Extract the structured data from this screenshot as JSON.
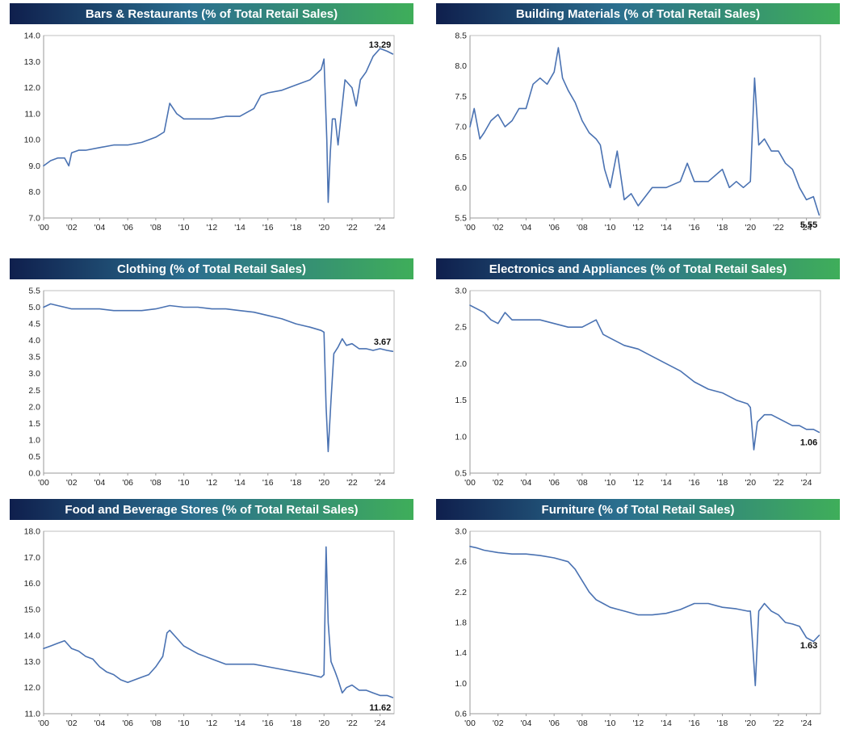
{
  "colors": {
    "series_line": "#4a72b2",
    "title_bg_start": "#0f1f4d",
    "title_bg_end": "#3fae5a",
    "title_text": "#ffffff"
  },
  "chart_data": [
    {
      "type": "line",
      "title": "Bars & Restaurants (% of Total Retail Sales)",
      "ylim": [
        7.0,
        14.0
      ],
      "yticks": [
        "7.0",
        "8.0",
        "9.0",
        "10.0",
        "11.0",
        "12.0",
        "13.0",
        "14.0"
      ],
      "xlim": [
        2000,
        2025
      ],
      "xticks": [
        "'00",
        "'02",
        "'04",
        "'06",
        "'08",
        "'10",
        "'12",
        "'14",
        "'16",
        "'18",
        "'20",
        "'22",
        "'24"
      ],
      "last_label": "13.29",
      "x": [
        2000.0,
        2000.5,
        2001.0,
        2001.5,
        2001.8,
        2002.0,
        2002.5,
        2003.0,
        2004.0,
        2005.0,
        2006.0,
        2007.0,
        2008.0,
        2008.6,
        2009.0,
        2009.5,
        2010.0,
        2011.0,
        2012.0,
        2013.0,
        2014.0,
        2015.0,
        2015.5,
        2016.0,
        2017.0,
        2018.0,
        2019.0,
        2019.8,
        2020.0,
        2020.2,
        2020.3,
        2020.45,
        2020.6,
        2020.8,
        2021.0,
        2021.2,
        2021.5,
        2022.0,
        2022.3,
        2022.6,
        2023.0,
        2023.5,
        2024.0,
        2024.5,
        2024.9
      ],
      "y": [
        9.0,
        9.2,
        9.3,
        9.3,
        9.0,
        9.5,
        9.6,
        9.6,
        9.7,
        9.8,
        9.8,
        9.9,
        10.1,
        10.3,
        11.4,
        11.0,
        10.8,
        10.8,
        10.8,
        10.9,
        10.9,
        11.2,
        11.7,
        11.8,
        11.9,
        12.1,
        12.3,
        12.7,
        13.1,
        10.0,
        7.6,
        9.5,
        10.8,
        10.8,
        9.8,
        10.8,
        12.3,
        12.0,
        11.3,
        12.3,
        12.6,
        13.2,
        13.5,
        13.4,
        13.29
      ]
    },
    {
      "type": "line",
      "title": "Building Materials (% of Total Retail Sales)",
      "ylim": [
        5.5,
        8.5
      ],
      "yticks": [
        "5.5",
        "6.0",
        "6.5",
        "7.0",
        "7.5",
        "8.0",
        "8.5"
      ],
      "xlim": [
        2000,
        2025
      ],
      "xticks": [
        "'00",
        "'02",
        "'04",
        "'06",
        "'08",
        "'10",
        "'12",
        "'14",
        "'16",
        "'18",
        "'20",
        "'22",
        "'24"
      ],
      "last_label": "5.55",
      "x": [
        2000.0,
        2000.3,
        2000.7,
        2001.0,
        2001.5,
        2002.0,
        2002.5,
        2003.0,
        2003.5,
        2004.0,
        2004.5,
        2005.0,
        2005.5,
        2006.0,
        2006.3,
        2006.6,
        2007.0,
        2007.5,
        2008.0,
        2008.5,
        2009.0,
        2009.3,
        2009.6,
        2010.0,
        2010.5,
        2011.0,
        2011.5,
        2012.0,
        2012.5,
        2013.0,
        2014.0,
        2015.0,
        2015.5,
        2016.0,
        2017.0,
        2018.0,
        2018.5,
        2019.0,
        2019.5,
        2020.0,
        2020.3,
        2020.6,
        2021.0,
        2021.5,
        2022.0,
        2022.5,
        2023.0,
        2023.5,
        2024.0,
        2024.5,
        2024.9
      ],
      "y": [
        7.0,
        7.3,
        6.8,
        6.9,
        7.1,
        7.2,
        7.0,
        7.1,
        7.3,
        7.3,
        7.7,
        7.8,
        7.7,
        7.9,
        8.3,
        7.8,
        7.6,
        7.4,
        7.1,
        6.9,
        6.8,
        6.7,
        6.3,
        6.0,
        6.6,
        5.8,
        5.9,
        5.7,
        5.85,
        6.0,
        6.0,
        6.1,
        6.4,
        6.1,
        6.1,
        6.3,
        6.0,
        6.1,
        6.0,
        6.1,
        7.8,
        6.7,
        6.8,
        6.6,
        6.6,
        6.4,
        6.3,
        6.0,
        5.8,
        5.85,
        5.55
      ]
    },
    {
      "type": "line",
      "title": "Clothing (% of Total Retail Sales)",
      "ylim": [
        0.0,
        5.5
      ],
      "yticks": [
        "0.0",
        "0.5",
        "1.0",
        "1.5",
        "2.0",
        "2.5",
        "3.0",
        "3.5",
        "4.0",
        "4.5",
        "5.0",
        "5.5"
      ],
      "xlim": [
        2000,
        2025
      ],
      "xticks": [
        "'00",
        "'02",
        "'04",
        "'06",
        "'08",
        "'10",
        "'12",
        "'14",
        "'16",
        "'18",
        "'20",
        "'22",
        "'24"
      ],
      "last_label": "3.67",
      "x": [
        2000.0,
        2000.5,
        2001.0,
        2001.5,
        2002.0,
        2003.0,
        2004.0,
        2005.0,
        2006.0,
        2007.0,
        2008.0,
        2009.0,
        2010.0,
        2011.0,
        2012.0,
        2013.0,
        2014.0,
        2015.0,
        2016.0,
        2017.0,
        2018.0,
        2019.0,
        2019.8,
        2020.0,
        2020.15,
        2020.3,
        2020.5,
        2020.7,
        2021.0,
        2021.3,
        2021.6,
        2022.0,
        2022.5,
        2023.0,
        2023.5,
        2024.0,
        2024.5,
        2024.9
      ],
      "y": [
        5.0,
        5.1,
        5.05,
        5.0,
        4.95,
        4.95,
        4.95,
        4.9,
        4.9,
        4.9,
        4.95,
        5.05,
        5.0,
        5.0,
        4.95,
        4.95,
        4.9,
        4.85,
        4.75,
        4.65,
        4.5,
        4.4,
        4.3,
        4.25,
        2.0,
        0.65,
        2.2,
        3.6,
        3.8,
        4.05,
        3.85,
        3.9,
        3.75,
        3.75,
        3.7,
        3.75,
        3.7,
        3.67
      ]
    },
    {
      "type": "line",
      "title": "Electronics and Appliances (% of Total Retail Sales)",
      "ylim": [
        0.5,
        3.0
      ],
      "yticks": [
        "0.5",
        "1.0",
        "1.5",
        "2.0",
        "2.5",
        "3.0"
      ],
      "xlim": [
        2000,
        2025
      ],
      "xticks": [
        "'00",
        "'02",
        "'04",
        "'06",
        "'08",
        "'10",
        "'12",
        "'14",
        "'16",
        "'18",
        "'20",
        "'22",
        "'24"
      ],
      "last_label": "1.06",
      "x": [
        2000.0,
        2000.5,
        2001.0,
        2001.5,
        2002.0,
        2002.5,
        2003.0,
        2004.0,
        2005.0,
        2006.0,
        2007.0,
        2008.0,
        2009.0,
        2009.5,
        2010.0,
        2011.0,
        2012.0,
        2013.0,
        2014.0,
        2015.0,
        2016.0,
        2017.0,
        2018.0,
        2019.0,
        2019.8,
        2020.0,
        2020.25,
        2020.5,
        2021.0,
        2021.5,
        2022.0,
        2022.5,
        2023.0,
        2023.5,
        2024.0,
        2024.5,
        2024.9
      ],
      "y": [
        2.8,
        2.75,
        2.7,
        2.6,
        2.55,
        2.7,
        2.6,
        2.6,
        2.6,
        2.55,
        2.5,
        2.5,
        2.6,
        2.4,
        2.35,
        2.25,
        2.2,
        2.1,
        2.0,
        1.9,
        1.75,
        1.65,
        1.6,
        1.5,
        1.45,
        1.4,
        0.82,
        1.2,
        1.3,
        1.3,
        1.25,
        1.2,
        1.15,
        1.15,
        1.1,
        1.1,
        1.06
      ]
    },
    {
      "type": "line",
      "title": "Food and Beverage Stores (% of Total Retail Sales)",
      "ylim": [
        11.0,
        18.0
      ],
      "yticks": [
        "11.0",
        "12.0",
        "13.0",
        "14.0",
        "15.0",
        "16.0",
        "17.0",
        "18.0"
      ],
      "xlim": [
        2000,
        2025
      ],
      "xticks": [
        "'00",
        "'02",
        "'04",
        "'06",
        "'08",
        "'10",
        "'12",
        "'14",
        "'16",
        "'18",
        "'20",
        "'22",
        "'24"
      ],
      "last_label": "11.62",
      "x": [
        2000.0,
        2000.5,
        2001.0,
        2001.5,
        2002.0,
        2002.5,
        2003.0,
        2003.5,
        2004.0,
        2004.5,
        2005.0,
        2005.5,
        2006.0,
        2006.5,
        2007.0,
        2007.5,
        2008.0,
        2008.5,
        2008.8,
        2009.0,
        2009.5,
        2010.0,
        2011.0,
        2012.0,
        2013.0,
        2014.0,
        2015.0,
        2016.0,
        2017.0,
        2018.0,
        2019.0,
        2019.8,
        2020.0,
        2020.15,
        2020.3,
        2020.5,
        2020.8,
        2021.0,
        2021.3,
        2021.6,
        2022.0,
        2022.5,
        2023.0,
        2023.5,
        2024.0,
        2024.5,
        2024.9
      ],
      "y": [
        13.5,
        13.6,
        13.7,
        13.8,
        13.5,
        13.4,
        13.2,
        13.1,
        12.8,
        12.6,
        12.5,
        12.3,
        12.2,
        12.3,
        12.4,
        12.5,
        12.8,
        13.2,
        14.1,
        14.2,
        13.9,
        13.6,
        13.3,
        13.1,
        12.9,
        12.9,
        12.9,
        12.8,
        12.7,
        12.6,
        12.5,
        12.4,
        12.5,
        17.4,
        14.5,
        13.0,
        12.6,
        12.3,
        11.8,
        12.0,
        12.1,
        11.9,
        11.9,
        11.8,
        11.7,
        11.7,
        11.62
      ]
    },
    {
      "type": "line",
      "title": "Furniture (% of Total Retail Sales)",
      "ylim": [
        0.6,
        3.0
      ],
      "yticks": [
        "0.6",
        "1.0",
        "1.4",
        "1.8",
        "2.2",
        "2.6",
        "3.0"
      ],
      "xlim": [
        2000,
        2025
      ],
      "xticks": [
        "'00",
        "'02",
        "'04",
        "'06",
        "'08",
        "'10",
        "'12",
        "'14",
        "'16",
        "'18",
        "'20",
        "'22",
        "'24"
      ],
      "last_label": "1.63",
      "x": [
        2000.0,
        2000.5,
        2001.0,
        2002.0,
        2003.0,
        2004.0,
        2005.0,
        2006.0,
        2007.0,
        2007.5,
        2008.0,
        2008.5,
        2009.0,
        2009.5,
        2010.0,
        2011.0,
        2012.0,
        2013.0,
        2014.0,
        2015.0,
        2016.0,
        2017.0,
        2018.0,
        2019.0,
        2019.8,
        2020.0,
        2020.2,
        2020.35,
        2020.6,
        2021.0,
        2021.5,
        2022.0,
        2022.5,
        2023.0,
        2023.5,
        2024.0,
        2024.5,
        2024.9
      ],
      "y": [
        2.8,
        2.78,
        2.75,
        2.72,
        2.7,
        2.7,
        2.68,
        2.65,
        2.6,
        2.5,
        2.35,
        2.2,
        2.1,
        2.05,
        2.0,
        1.95,
        1.9,
        1.9,
        1.92,
        1.97,
        2.05,
        2.05,
        2.0,
        1.98,
        1.95,
        1.95,
        1.4,
        0.97,
        1.95,
        2.05,
        1.95,
        1.9,
        1.8,
        1.78,
        1.75,
        1.6,
        1.55,
        1.63
      ]
    }
  ]
}
